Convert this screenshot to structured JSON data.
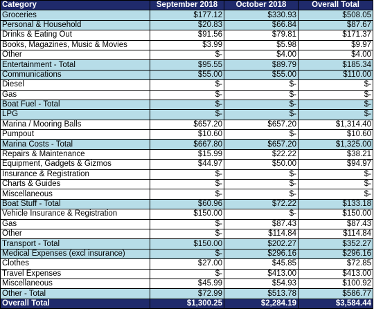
{
  "headers": [
    "Category",
    "September 2018",
    "October 2018",
    "Overall Total"
  ],
  "rows": [
    {
      "category": "Groceries",
      "sep": "$177.12",
      "oct": "$330.93",
      "total": "$508.05",
      "style": "alt"
    },
    {
      "category": "Personal & Household",
      "sep": "$20.83",
      "oct": "$66.84",
      "total": "$87.67",
      "style": "alt"
    },
    {
      "category": "Drinks & Eating Out",
      "sep": "$91.56",
      "oct": "$79.81",
      "total": "$171.37",
      "style": ""
    },
    {
      "category": "Books, Magazines, Music & Movies",
      "sep": "$3.99",
      "oct": "$5.98",
      "total": "$9.97",
      "style": ""
    },
    {
      "category": "Other",
      "sep": "$-",
      "oct": "$4.00",
      "total": "$4.00",
      "style": ""
    },
    {
      "category": "Entertainment - Total",
      "sep": "$95.55",
      "oct": "$89.79",
      "total": "$185.34",
      "style": "total"
    },
    {
      "category": "Communications",
      "sep": "$55.00",
      "oct": "$55.00",
      "total": "$110.00",
      "style": "alt"
    },
    {
      "category": "Diesel",
      "sep": "$-",
      "oct": "$-",
      "total": "$-",
      "style": ""
    },
    {
      "category": "Gas",
      "sep": "$-",
      "oct": "$-",
      "total": "$-",
      "style": ""
    },
    {
      "category": "Boat Fuel - Total",
      "sep": "$-",
      "oct": "$-",
      "total": "$-",
      "style": "total"
    },
    {
      "category": "LPG",
      "sep": "$-",
      "oct": "$-",
      "total": "$-",
      "style": "alt"
    },
    {
      "category": "Marina / Mooring Balls",
      "sep": "$657.20",
      "oct": "$657.20",
      "total": "$1,314.40",
      "style": ""
    },
    {
      "category": "Pumpout",
      "sep": "$10.60",
      "oct": "$-",
      "total": "$10.60",
      "style": ""
    },
    {
      "category": "Marina Costs - Total",
      "sep": "$667.80",
      "oct": "$657.20",
      "total": "$1,325.00",
      "style": "total"
    },
    {
      "category": "Repairs & Maintenance",
      "sep": "$15.99",
      "oct": "$22.22",
      "total": "$38.21",
      "style": ""
    },
    {
      "category": "Equipment, Gadgets & Gizmos",
      "sep": "$44.97",
      "oct": "$50.00",
      "total": "$94.97",
      "style": ""
    },
    {
      "category": "Insurance & Registration",
      "sep": "$-",
      "oct": "$-",
      "total": "$-",
      "style": ""
    },
    {
      "category": "Charts & Guides",
      "sep": "$-",
      "oct": "$-",
      "total": "$-",
      "style": ""
    },
    {
      "category": "Miscellaneous",
      "sep": "$-",
      "oct": "$-",
      "total": "$-",
      "style": ""
    },
    {
      "category": "Boat Stuff - Total",
      "sep": "$60.96",
      "oct": "$72.22",
      "total": "$133.18",
      "style": "total"
    },
    {
      "category": "Vehicle Insurance & Registration",
      "sep": "$150.00",
      "oct": "$-",
      "total": "$150.00",
      "style": ""
    },
    {
      "category": "Gas",
      "sep": "$-",
      "oct": "$87.43",
      "total": "$87.43",
      "style": ""
    },
    {
      "category": "Other",
      "sep": "$-",
      "oct": "$114.84",
      "total": "$114.84",
      "style": ""
    },
    {
      "category": "Transport - Total",
      "sep": "$150.00",
      "oct": "$202.27",
      "total": "$352.27",
      "style": "total"
    },
    {
      "category": "Medical Expenses (excl insurance)",
      "sep": "$-",
      "oct": "$296.16",
      "total": "$296.16",
      "style": "alt"
    },
    {
      "category": "Clothes",
      "sep": "$27.00",
      "oct": "$45.85",
      "total": "$72.85",
      "style": ""
    },
    {
      "category": "Travel Expenses",
      "sep": "$-",
      "oct": "$413.00",
      "total": "$413.00",
      "style": ""
    },
    {
      "category": "Miscellaneous",
      "sep": "$45.99",
      "oct": "$54.93",
      "total": "$100.92",
      "style": ""
    },
    {
      "category": "Other - Total",
      "sep": "$72.99",
      "oct": "$513.78",
      "total": "$586.77",
      "style": "total"
    }
  ],
  "grand_total": {
    "category": "Overall Total",
    "sep": "$1,300.25",
    "oct": "$2,284.19",
    "total": "$3,584.44"
  },
  "colors": {
    "header_bg": "#1f2a6b",
    "header_text": "#ffffff",
    "band": "#b7dde8",
    "border": "#000000"
  }
}
